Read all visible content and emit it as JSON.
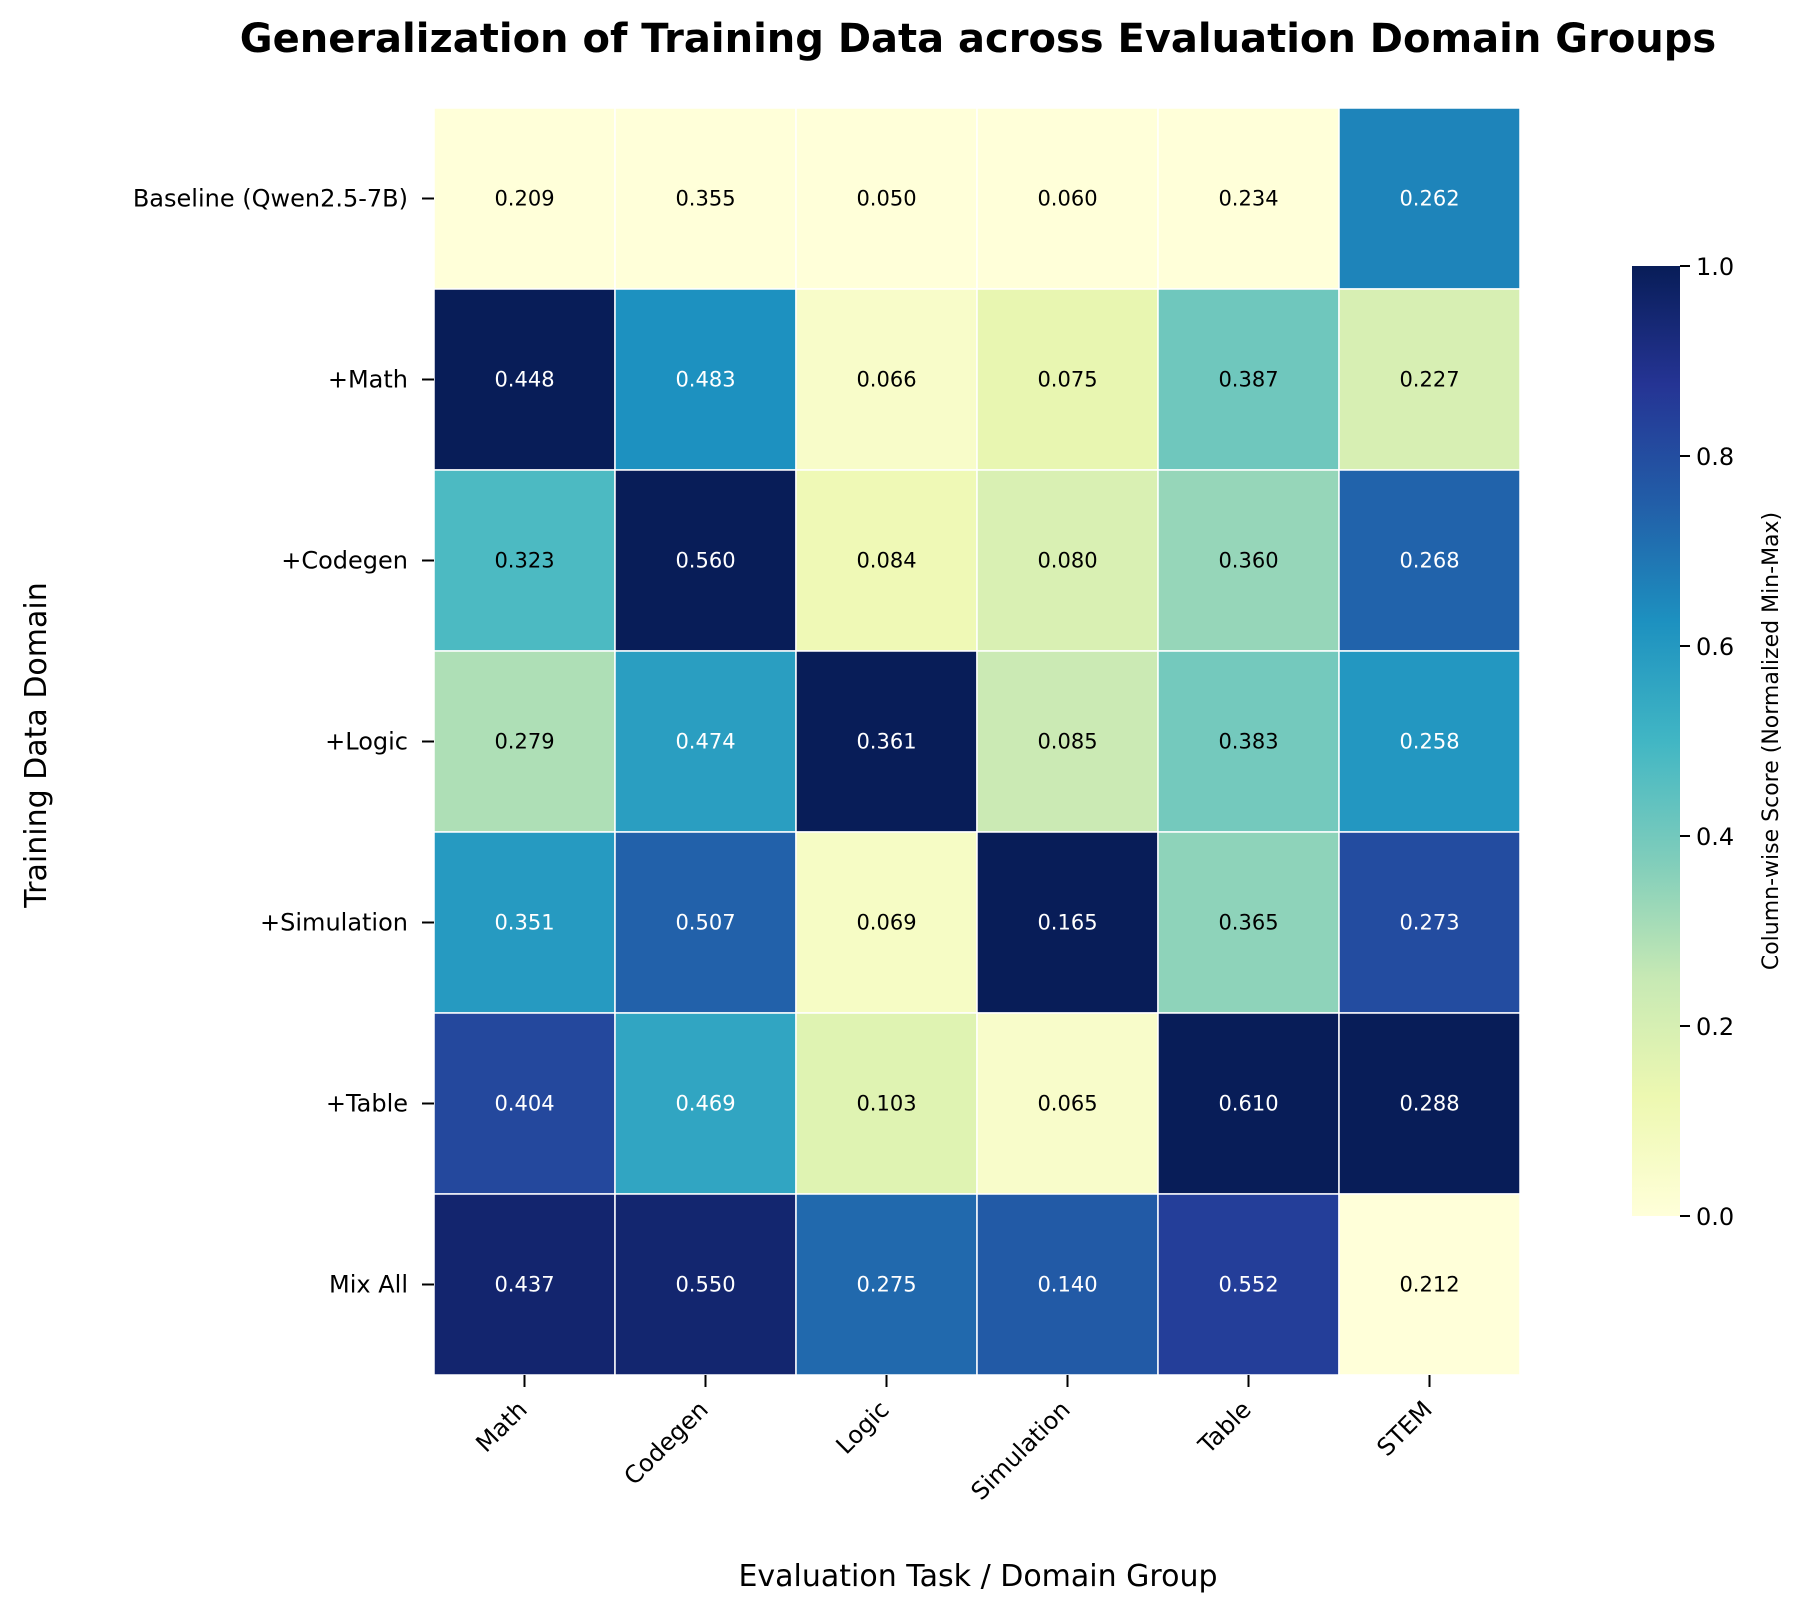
{
  "chart_data": {
    "type": "heatmap",
    "title": "Generalization of Training Data across Evaluation Domain Groups",
    "xlabel": "Evaluation Task / Domain Group",
    "ylabel": "Training Data Domain",
    "x_categories": [
      "Math",
      "Codegen",
      "Logic",
      "Simulation",
      "Table",
      "STEM"
    ],
    "y_categories": [
      "Baseline (Qwen2.5-7B)",
      "+Math",
      "+Codegen",
      "+Logic",
      "+Simulation",
      "+Table",
      "Mix All"
    ],
    "values": [
      [
        0.209,
        0.355,
        0.05,
        0.06,
        0.234,
        0.262
      ],
      [
        0.448,
        0.483,
        0.066,
        0.075,
        0.387,
        0.227
      ],
      [
        0.323,
        0.56,
        0.084,
        0.08,
        0.36,
        0.268
      ],
      [
        0.279,
        0.474,
        0.361,
        0.085,
        0.383,
        0.258
      ],
      [
        0.351,
        0.507,
        0.069,
        0.165,
        0.365,
        0.273
      ],
      [
        0.404,
        0.469,
        0.103,
        0.065,
        0.61,
        0.288
      ],
      [
        0.437,
        0.55,
        0.275,
        0.14,
        0.552,
        0.212
      ]
    ],
    "value_format": "3 decimals",
    "color_normalization": "column-wise min-max",
    "colormap": "YlGnBu",
    "colorbar": {
      "label": "Column-wise Score (Normalized Min-Max)",
      "range": [
        0.0,
        1.0
      ],
      "ticks": [
        "0.0",
        "0.2",
        "0.4",
        "0.6",
        "0.8",
        "1.0"
      ]
    },
    "colormap_stops": [
      "#ffffd9",
      "#edf8b1",
      "#c7e9b4",
      "#7fcdbb",
      "#41b6c4",
      "#1d91c0",
      "#225ea8",
      "#253494",
      "#081d58"
    ],
    "cell_border_color": "#ffffff",
    "label_color_dark": "#000000",
    "label_color_light": "#ffffff"
  }
}
